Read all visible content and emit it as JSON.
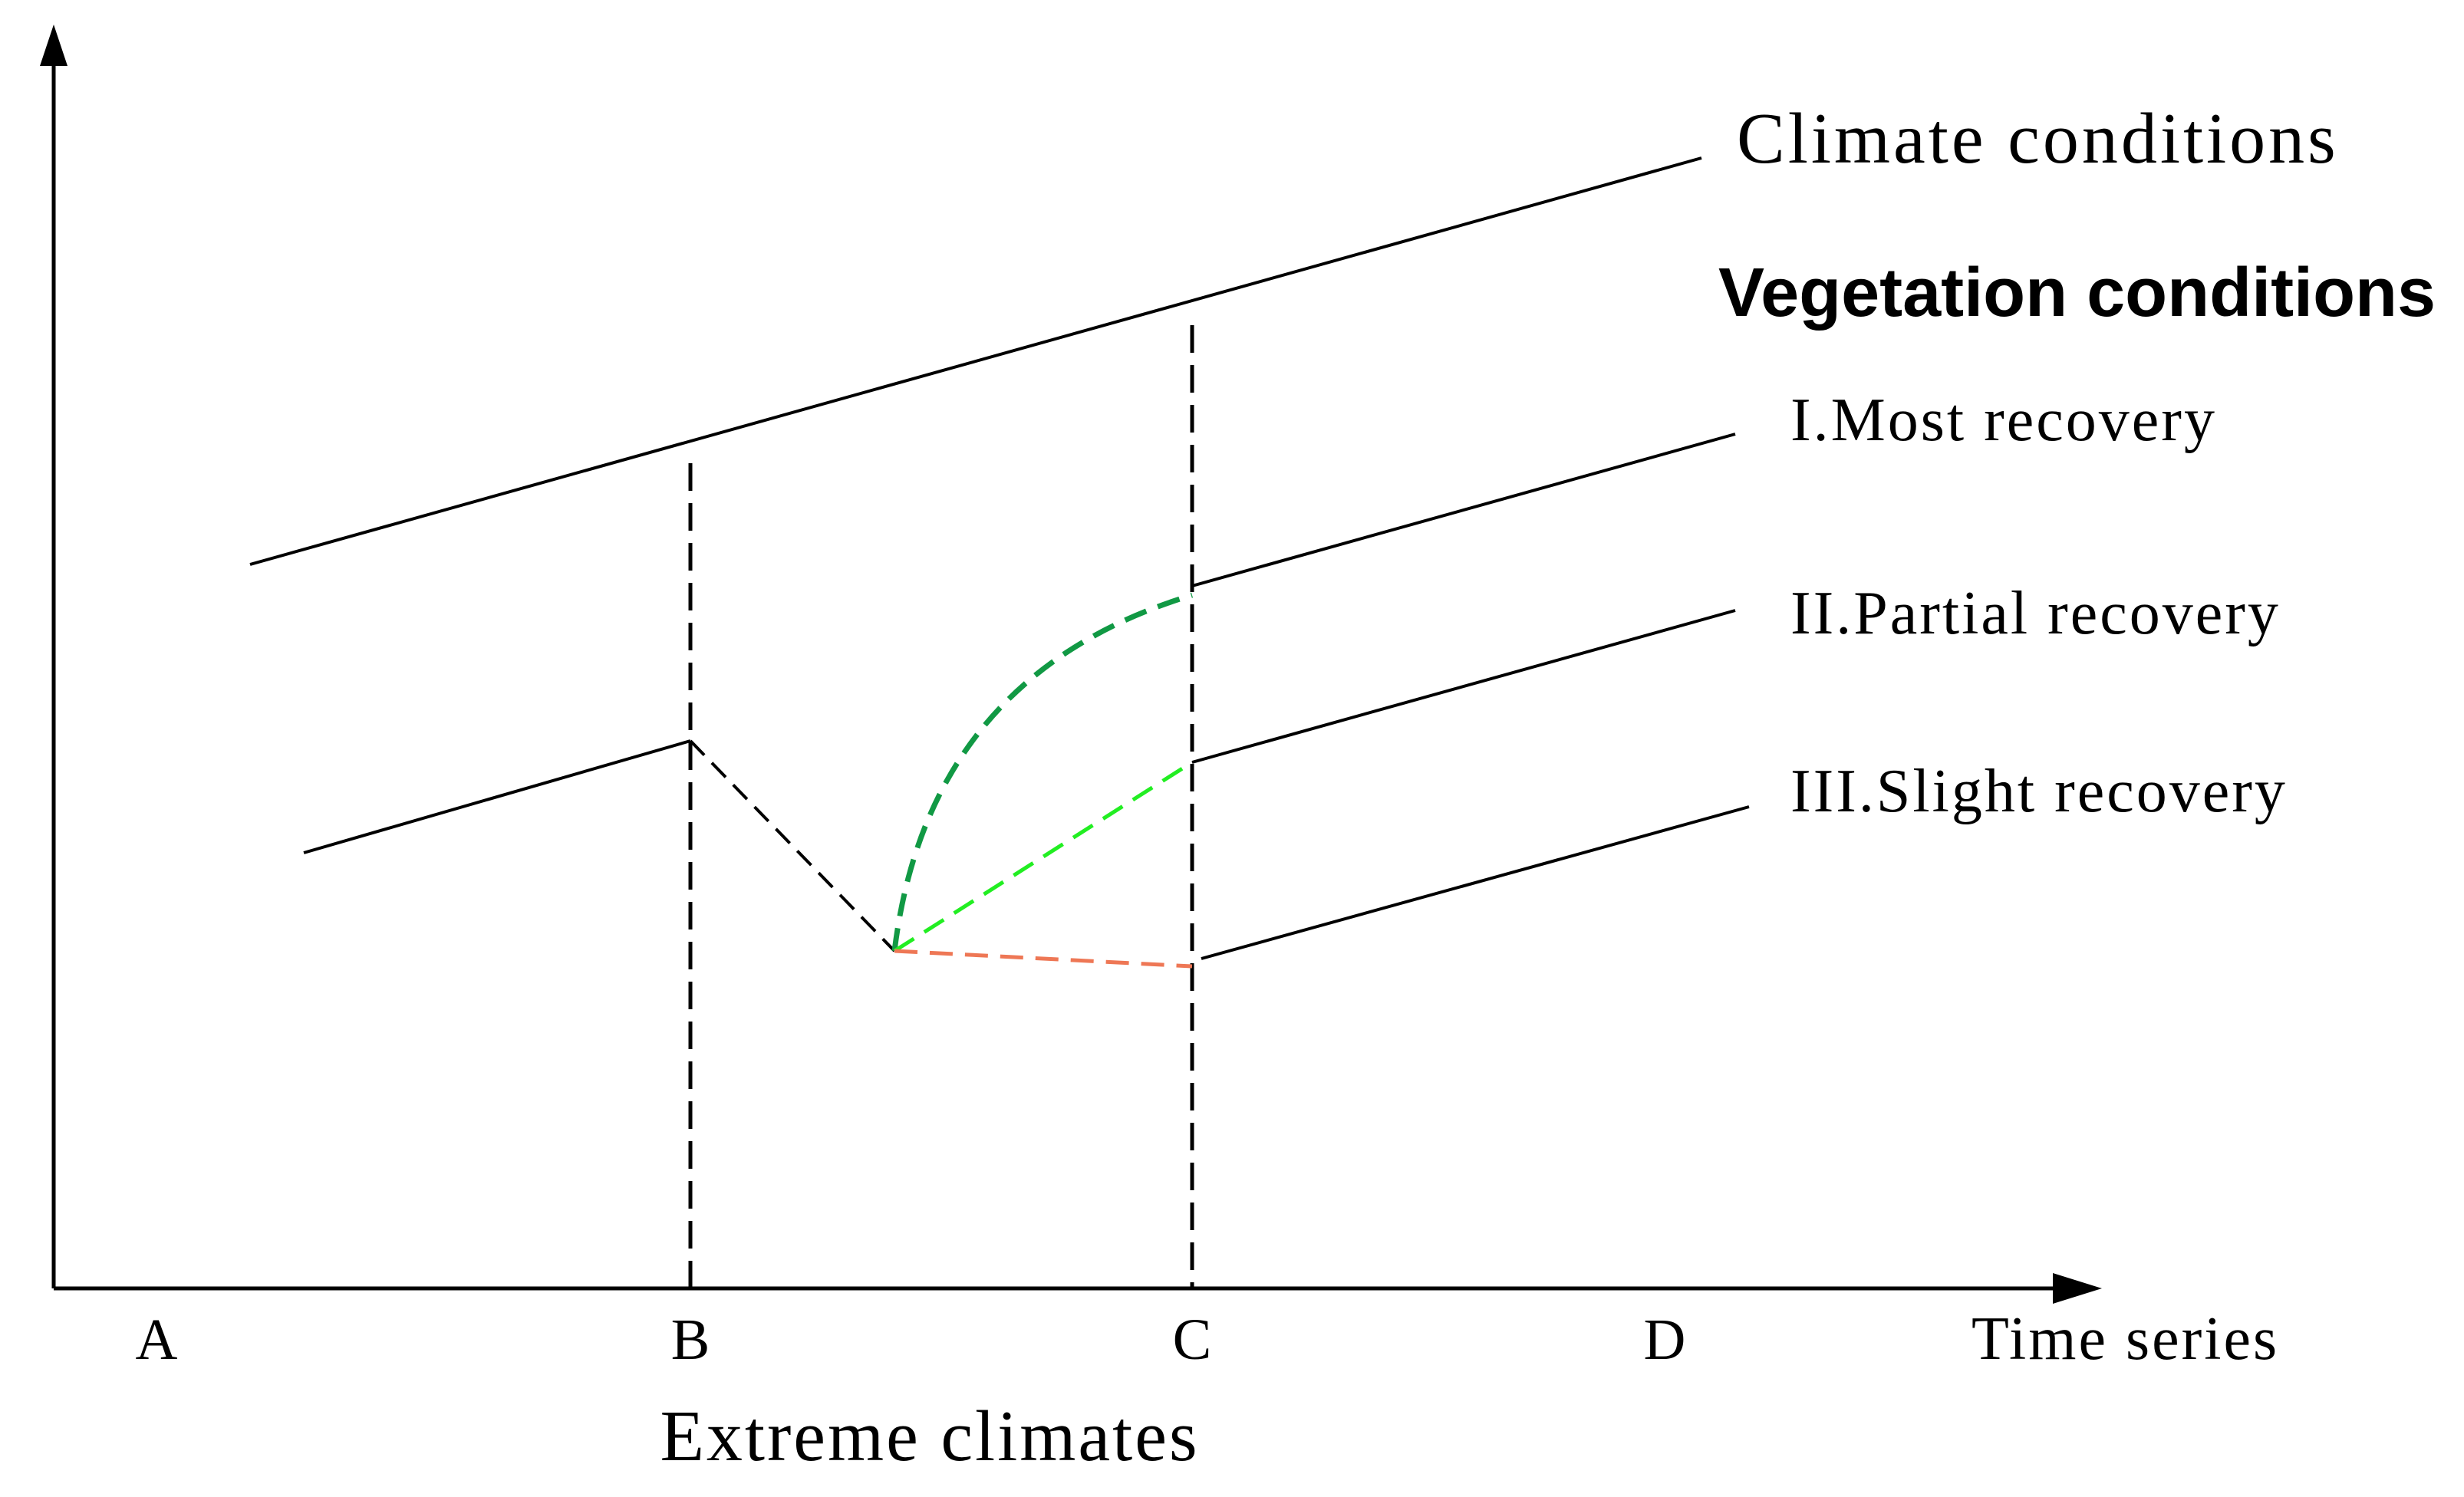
{
  "diagram": {
    "labels": {
      "climate_conditions": "Climate conditions",
      "vegetation_conditions": "Vegetation conditions",
      "most_recovery": "I.Most recovery",
      "partial_recovery": "II.Partial recovery",
      "slight_recovery": "III.Slight recovery",
      "extreme_climates": "Extreme climates",
      "time_series": "Time series"
    },
    "ticks": [
      "A",
      "B",
      "C",
      "D"
    ],
    "colors": {
      "axis": "#000000",
      "line": "#000000",
      "most_recovery_path": "#119944",
      "partial_recovery_path": "#22ee22",
      "slight_recovery_path": "#ee7755"
    }
  }
}
